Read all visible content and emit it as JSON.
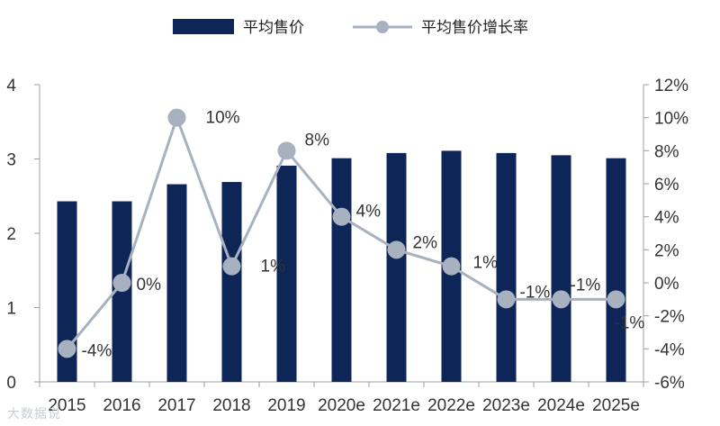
{
  "chart_data": {
    "type": "bar",
    "categories": [
      "2015",
      "2016",
      "2017",
      "2018",
      "2019",
      "2020e",
      "2021e",
      "2022e",
      "2023e",
      "2024e",
      "2025e"
    ],
    "series": [
      {
        "name": "平均售价",
        "type": "bar",
        "axis": "left",
        "values": [
          2.43,
          2.43,
          2.66,
          2.69,
          2.91,
          3.01,
          3.08,
          3.11,
          3.08,
          3.05,
          3.01
        ],
        "color": "#0e2557"
      },
      {
        "name": "平均售价增长率",
        "type": "line",
        "axis": "right",
        "values": [
          -4,
          0,
          10,
          1,
          8,
          4,
          2,
          1,
          -1,
          -1,
          -1
        ],
        "labels": [
          "-4%",
          "0%",
          "10%",
          "1%",
          "8%",
          "4%",
          "2%",
          "1%",
          "-1%",
          "-1%",
          "-1%"
        ],
        "color": "#a7b1bf"
      }
    ],
    "y_left": {
      "min": 0,
      "max": 4,
      "ticks": [
        "0",
        "1",
        "2",
        "3",
        "4"
      ]
    },
    "y_right": {
      "min": -6,
      "max": 12,
      "ticks": [
        "-6%",
        "-4%",
        "-2%",
        "0%",
        "2%",
        "4%",
        "6%",
        "8%",
        "10%",
        "12%"
      ]
    },
    "legend_position": "top-center",
    "grid": false
  },
  "watermark": "大数据说"
}
